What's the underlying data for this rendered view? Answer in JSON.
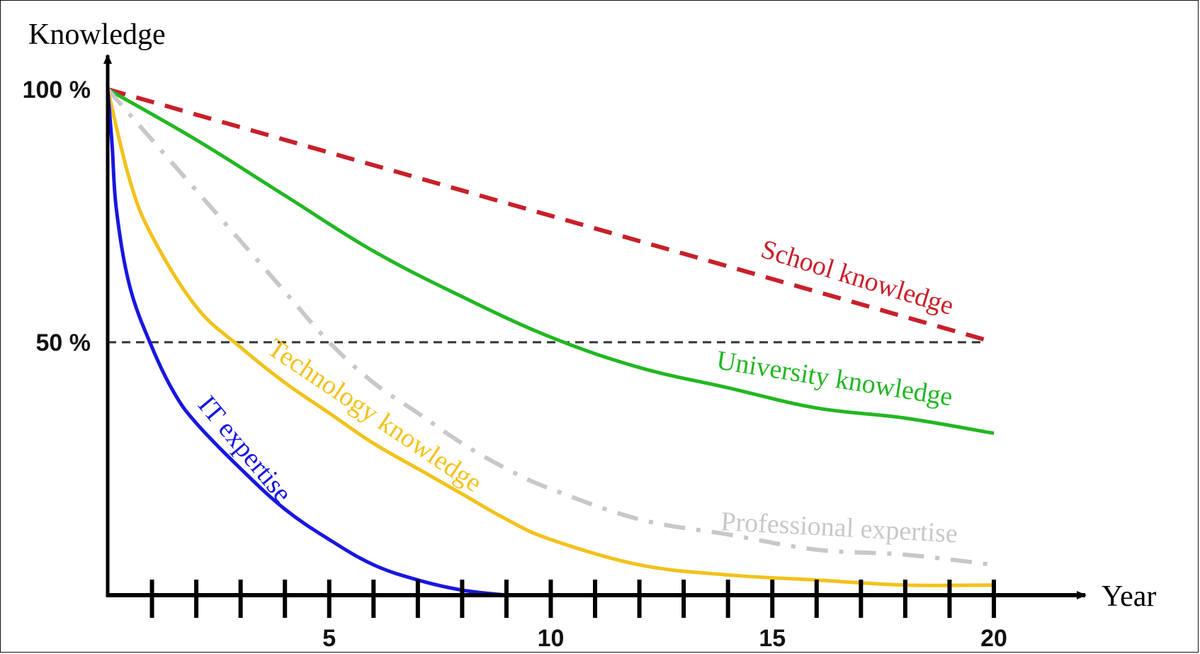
{
  "chart_data": {
    "type": "line",
    "title": "",
    "ylabel": "Knowledge",
    "xlabel": "Year",
    "xlim": [
      0,
      20
    ],
    "ylim": [
      0,
      100
    ],
    "x_ticks": [
      1,
      2,
      3,
      4,
      5,
      6,
      7,
      8,
      9,
      10,
      11,
      12,
      13,
      14,
      15,
      16,
      17,
      18,
      19,
      20
    ],
    "x_tick_labels": [
      {
        "x": 5,
        "label": "5"
      },
      {
        "x": 10,
        "label": "10"
      },
      {
        "x": 15,
        "label": "15"
      },
      {
        "x": 20,
        "label": "20"
      }
    ],
    "y_tick_labels": [
      {
        "y": 100,
        "label": "100 %"
      },
      {
        "y": 50,
        "label": "50 %"
      }
    ],
    "reference_line": {
      "y": 50,
      "style": "dashed",
      "color": "#333333"
    },
    "grid": false,
    "series": [
      {
        "name": "School knowledge",
        "color": "#c8202a",
        "style": "dashed",
        "x": [
          0,
          20
        ],
        "y": [
          100,
          50
        ]
      },
      {
        "name": "University knowledge",
        "color": "#22b722",
        "style": "solid",
        "x": [
          0,
          2,
          4,
          6,
          8,
          10,
          12,
          14,
          16,
          18,
          20
        ],
        "y": [
          100,
          90,
          79,
          68,
          59,
          51,
          45,
          41,
          37,
          35,
          32
        ]
      },
      {
        "name": "Professional expertise",
        "color": "#c8c8c8",
        "style": "dashdot",
        "x": [
          0,
          1,
          2,
          3,
          4,
          5,
          6,
          7,
          8,
          9,
          10,
          12,
          14,
          16,
          18,
          20
        ],
        "y": [
          100,
          90,
          80,
          70,
          60,
          50,
          42,
          36,
          30,
          25,
          21,
          15,
          12,
          9,
          8,
          6
        ]
      },
      {
        "name": "Technology knowledge",
        "color": "#f2c21b",
        "style": "solid",
        "x": [
          0,
          0.5,
          1,
          2,
          3,
          4,
          5,
          6,
          7,
          8,
          9,
          10,
          12,
          14,
          16,
          18,
          20
        ],
        "y": [
          100,
          82,
          71,
          57,
          49,
          42,
          36,
          30,
          25,
          20,
          15,
          11,
          6,
          4,
          3,
          2,
          2
        ]
      },
      {
        "name": "IT expertise",
        "color": "#1717e0",
        "style": "solid",
        "x": [
          0,
          0.1,
          0.2,
          0.5,
          1,
          1.5,
          2,
          3,
          4,
          5,
          6,
          7,
          8,
          9
        ],
        "y": [
          100,
          89,
          76,
          61,
          49,
          40,
          34,
          25,
          17,
          11,
          6,
          3,
          1,
          0
        ]
      }
    ]
  }
}
